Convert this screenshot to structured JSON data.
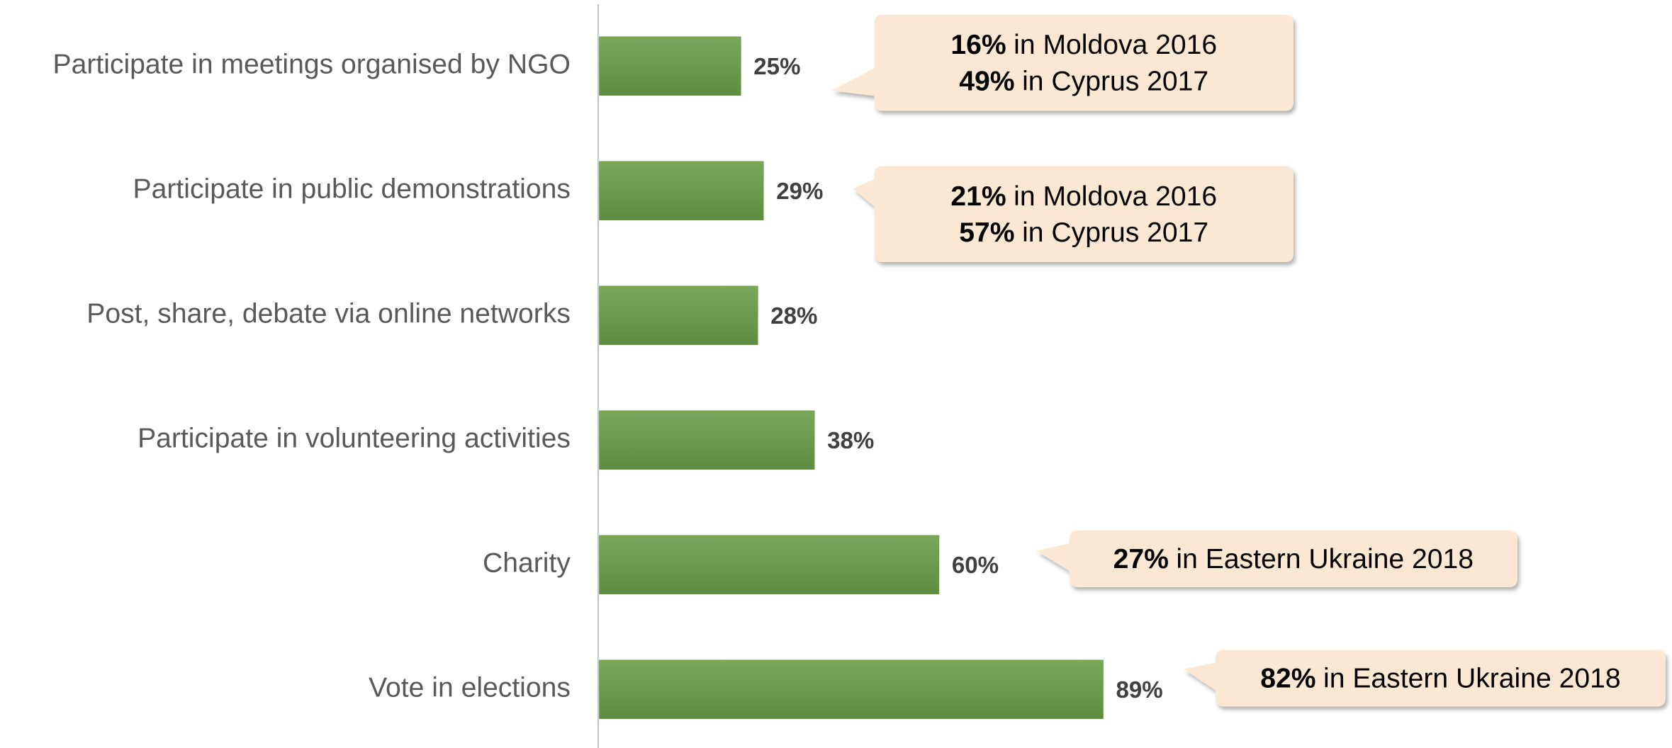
{
  "chart_data": {
    "type": "bar",
    "orientation": "horizontal",
    "categories": [
      "Participate in meetings organised by NGO",
      "Participate in public demonstrations",
      "Post, share, debate via online networks",
      "Participate in volunteering activities",
      "Charity",
      "Vote in elections"
    ],
    "values": [
      25,
      29,
      28,
      38,
      60,
      89
    ],
    "value_labels": [
      "25%",
      "29%",
      "28%",
      "38%",
      "60%",
      "89%"
    ],
    "color": "#6a9a4a",
    "annotations": [
      [
        {
          "bold": "16%",
          "text": "in Moldova 2016"
        },
        {
          "bold": "49%",
          "text": "in Cyprus 2017"
        }
      ],
      [
        {
          "bold": "21%",
          "text": "in Moldova 2016"
        },
        {
          "bold": "57%",
          "text": "in Cyprus 2017"
        }
      ],
      null,
      null,
      [
        {
          "bold": "27%",
          "text": "in Eastern Ukraine 2018"
        }
      ],
      [
        {
          "bold": "82%",
          "text": "in Eastern Ukraine 2018"
        }
      ]
    ]
  }
}
